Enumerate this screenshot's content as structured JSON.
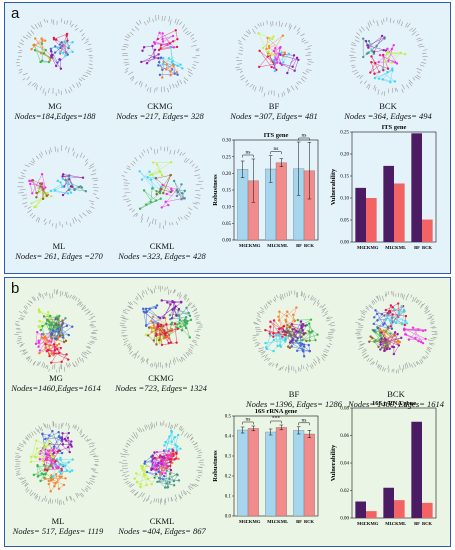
{
  "panel_a": {
    "letter": "a",
    "networks": [
      {
        "name": "MG",
        "stats": "Nodes=184,Edges=188"
      },
      {
        "name": "CKMG",
        "stats": "Nodes =217, Edges= 328"
      },
      {
        "name": "BF",
        "stats": "Nodes =307, Edges= 481"
      },
      {
        "name": "BCK",
        "stats": "Nodes =364, Edges= 494"
      },
      {
        "name": "ML",
        "stats": "Nodes= 261, Edges =270"
      },
      {
        "name": "CKML",
        "stats": "Nodes =323, Edges= 428"
      }
    ]
  },
  "panel_b": {
    "letter": "b",
    "networks": [
      {
        "name": "MG",
        "stats": "Nodes=1460,Edges=1614"
      },
      {
        "name": "CKMG",
        "stats": "Nodes =723, Edges= 1324"
      },
      {
        "name": "BF",
        "stats": "Nodes =1396, Edges= 1286"
      },
      {
        "name": "BCK",
        "stats": "Nodes= 1460, Edges= 1614"
      },
      {
        "name": "ML",
        "stats": "Nodes= 517, Edges= 1119"
      },
      {
        "name": "CKML",
        "stats": "Nodes =404, Edges= 867"
      }
    ]
  },
  "colors": {
    "blue": "#a6d6ee",
    "pink": "#f28b8b",
    "purple": "#4b1c64",
    "salmon": "#f26464"
  },
  "chart_data": [
    {
      "type": "bar",
      "title": "ITS gene",
      "ylabel": "Robustness",
      "ylim": [
        0,
        0.3
      ],
      "yticks": [
        "0.00",
        "0.05",
        "0.10",
        "0.15",
        "0.20",
        "0.25",
        "0.30"
      ],
      "categories": [
        "MG",
        "CKMG",
        "ML",
        "CKML",
        "BF",
        "BCK"
      ],
      "values": [
        0.212,
        0.178,
        0.213,
        0.232,
        0.214,
        0.208
      ],
      "errors": [
        0.025,
        0.065,
        0.04,
        0.012,
        0.08,
        0.085
      ],
      "colors": [
        "#a6d6ee",
        "#f28b8b",
        "#a6d6ee",
        "#f28b8b",
        "#a6d6ee",
        "#f28b8b"
      ],
      "significance": [
        "ns",
        "ns",
        "ns"
      ]
    },
    {
      "type": "bar",
      "title": "ITS gene",
      "ylabel": "Vulnerability",
      "ylim": [
        0,
        0.25
      ],
      "yticks": [
        "0.00",
        "0.05",
        "0.10",
        "0.15",
        "0.20",
        "0.25"
      ],
      "categories": [
        "MG",
        "CKMG",
        "ML",
        "CKML",
        "BF",
        "BCK"
      ],
      "values": [
        0.123,
        0.1,
        0.173,
        0.133,
        0.247,
        0.051
      ],
      "colors": [
        "#4b1c64",
        "#f26464",
        "#4b1c64",
        "#f26464",
        "#4b1c64",
        "#f26464"
      ]
    },
    {
      "type": "bar",
      "title": "16S rRNA gene",
      "ylabel": "Robustness",
      "ylim": [
        0,
        0.5
      ],
      "yticks": [
        "0.0",
        "0.1",
        "0.2",
        "0.3",
        "0.4",
        "0.5"
      ],
      "categories": [
        "MG",
        "CKMG",
        "ML",
        "CKML",
        "BF",
        "BCK"
      ],
      "values": [
        0.43,
        0.438,
        0.42,
        0.443,
        0.428,
        0.41
      ],
      "errors": [
        0.015,
        0.012,
        0.015,
        0.012,
        0.018,
        0.018
      ],
      "colors": [
        "#a6d6ee",
        "#f28b8b",
        "#a6d6ee",
        "#f28b8b",
        "#a6d6ee",
        "#f28b8b"
      ],
      "significance": [
        "ns",
        "***",
        "ns"
      ]
    },
    {
      "type": "bar",
      "title": "16S r RNA gene",
      "ylabel": "Vulnerability",
      "ylim": [
        0,
        0.08
      ],
      "yticks": [
        "0.00",
        "0.02",
        "0.04",
        "0.06",
        "0.08"
      ],
      "categories": [
        "MG",
        "CKMG",
        "ML",
        "CKML",
        "BF",
        "BCK"
      ],
      "values": [
        0.012,
        0.005,
        0.022,
        0.013,
        0.07,
        0.011
      ],
      "colors": [
        "#4b1c64",
        "#f26464",
        "#4b1c64",
        "#f26464",
        "#4b1c64",
        "#f26464"
      ]
    }
  ]
}
